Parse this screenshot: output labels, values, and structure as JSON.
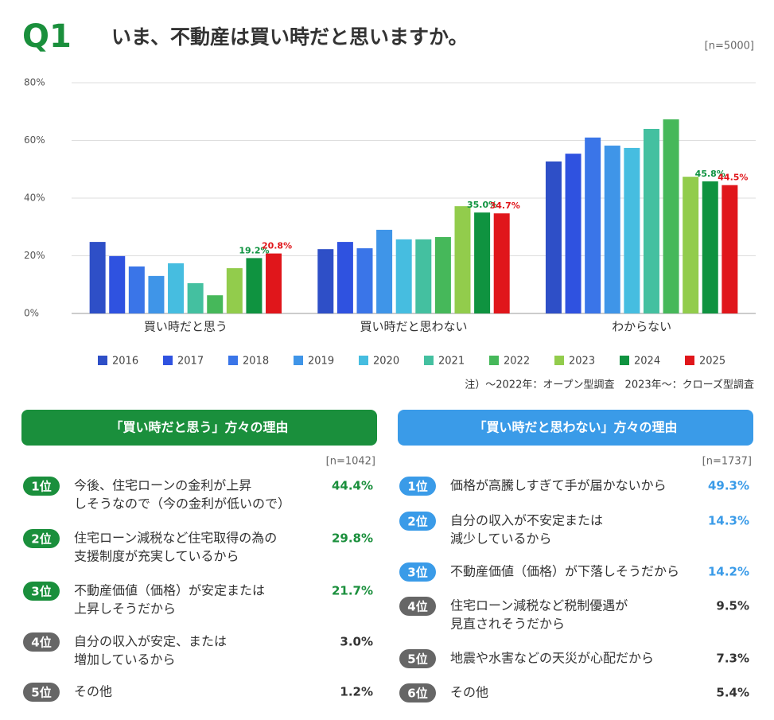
{
  "header": {
    "label": "Q1",
    "title": "いま、不動産は買い時だと思いますか。",
    "sample": "[n=5000]"
  },
  "chart_data": {
    "type": "bar",
    "categories": [
      "買い時だと思う",
      "買い時だと思わない",
      "わからない"
    ],
    "series": [
      {
        "name": "2016",
        "color": "#2e4fc7",
        "values": [
          24.8,
          22.3,
          52.7
        ]
      },
      {
        "name": "2017",
        "color": "#2f52e0",
        "values": [
          19.9,
          24.8,
          55.4
        ]
      },
      {
        "name": "2018",
        "color": "#3a75e8",
        "values": [
          16.3,
          22.6,
          61.0
        ]
      },
      {
        "name": "2019",
        "color": "#3f95e8",
        "values": [
          13.0,
          29.0,
          58.2
        ]
      },
      {
        "name": "2020",
        "color": "#46bde0",
        "values": [
          17.4,
          25.7,
          57.4
        ]
      },
      {
        "name": "2021",
        "color": "#44c0a0",
        "values": [
          10.5,
          25.7,
          64.0
        ]
      },
      {
        "name": "2022",
        "color": "#46b85a",
        "values": [
          6.3,
          26.5,
          67.3
        ]
      },
      {
        "name": "2023",
        "color": "#92cc4c",
        "values": [
          15.7,
          37.2,
          47.4
        ]
      },
      {
        "name": "2024",
        "color": "#0f9340",
        "values": [
          19.2,
          35.0,
          45.8
        ],
        "value_labels": [
          "19.2%",
          "35.0%",
          "45.8%"
        ]
      },
      {
        "name": "2025",
        "color": "#e0161b",
        "values": [
          20.8,
          34.7,
          44.5
        ],
        "value_labels": [
          "20.8%",
          "34.7%",
          "44.5%"
        ]
      }
    ],
    "ylim": [
      0,
      80
    ],
    "yticks": [
      {
        "value": 0,
        "label": "0%"
      },
      {
        "value": 20,
        "label": "20%"
      },
      {
        "value": 40,
        "label": "40%"
      },
      {
        "value": 60,
        "label": "60%"
      },
      {
        "value": 80,
        "label": "80%"
      }
    ],
    "grid": true,
    "legend": "bottom"
  },
  "note": "注）～2022年：オープン型調査　2023年～：クローズ型調査",
  "reasons": [
    {
      "title": "「買い時だと思う」方々の理由",
      "sample": "[n=1042]",
      "color": "#1a8f3c",
      "items": [
        {
          "rank": "1位",
          "lines": [
            "今後、住宅ローンの金利が上昇",
            "しそうなので（今の金利が低いので）"
          ],
          "value": "44.4%"
        },
        {
          "rank": "2位",
          "lines": [
            "住宅ローン減税など住宅取得の為の",
            "支援制度が充実しているから"
          ],
          "value": "29.8%"
        },
        {
          "rank": "3位",
          "lines": [
            "不動産価値（価格）が安定または",
            "上昇しそうだから"
          ],
          "value": "21.7%"
        },
        {
          "rank": "4位",
          "lines": [
            "自分の収入が安定、または",
            "増加しているから"
          ],
          "value": "3.0%"
        },
        {
          "rank": "5位",
          "lines": [
            "その他"
          ],
          "value": "1.2%"
        }
      ]
    },
    {
      "title": "「買い時だと思わない」方々の理由",
      "sample": "[n=1737]",
      "color": "#3a9be8",
      "items": [
        {
          "rank": "1位",
          "lines": [
            "価格が高騰しすぎて手が届かないから"
          ],
          "value": "49.3%"
        },
        {
          "rank": "2位",
          "lines": [
            "自分の収入が不安定または",
            "減少しているから"
          ],
          "value": "14.3%"
        },
        {
          "rank": "3位",
          "lines": [
            "不動産価値（価格）が下落しそうだから"
          ],
          "value": "14.2%"
        },
        {
          "rank": "4位",
          "lines": [
            "住宅ローン減税など税制優遇が",
            "見直されそうだから"
          ],
          "value": "9.5%"
        },
        {
          "rank": "5位",
          "lines": [
            "地震や水害などの天災が心配だから"
          ],
          "value": "7.3%"
        },
        {
          "rank": "6位",
          "lines": [
            "その他"
          ],
          "value": "5.4%"
        }
      ]
    }
  ]
}
